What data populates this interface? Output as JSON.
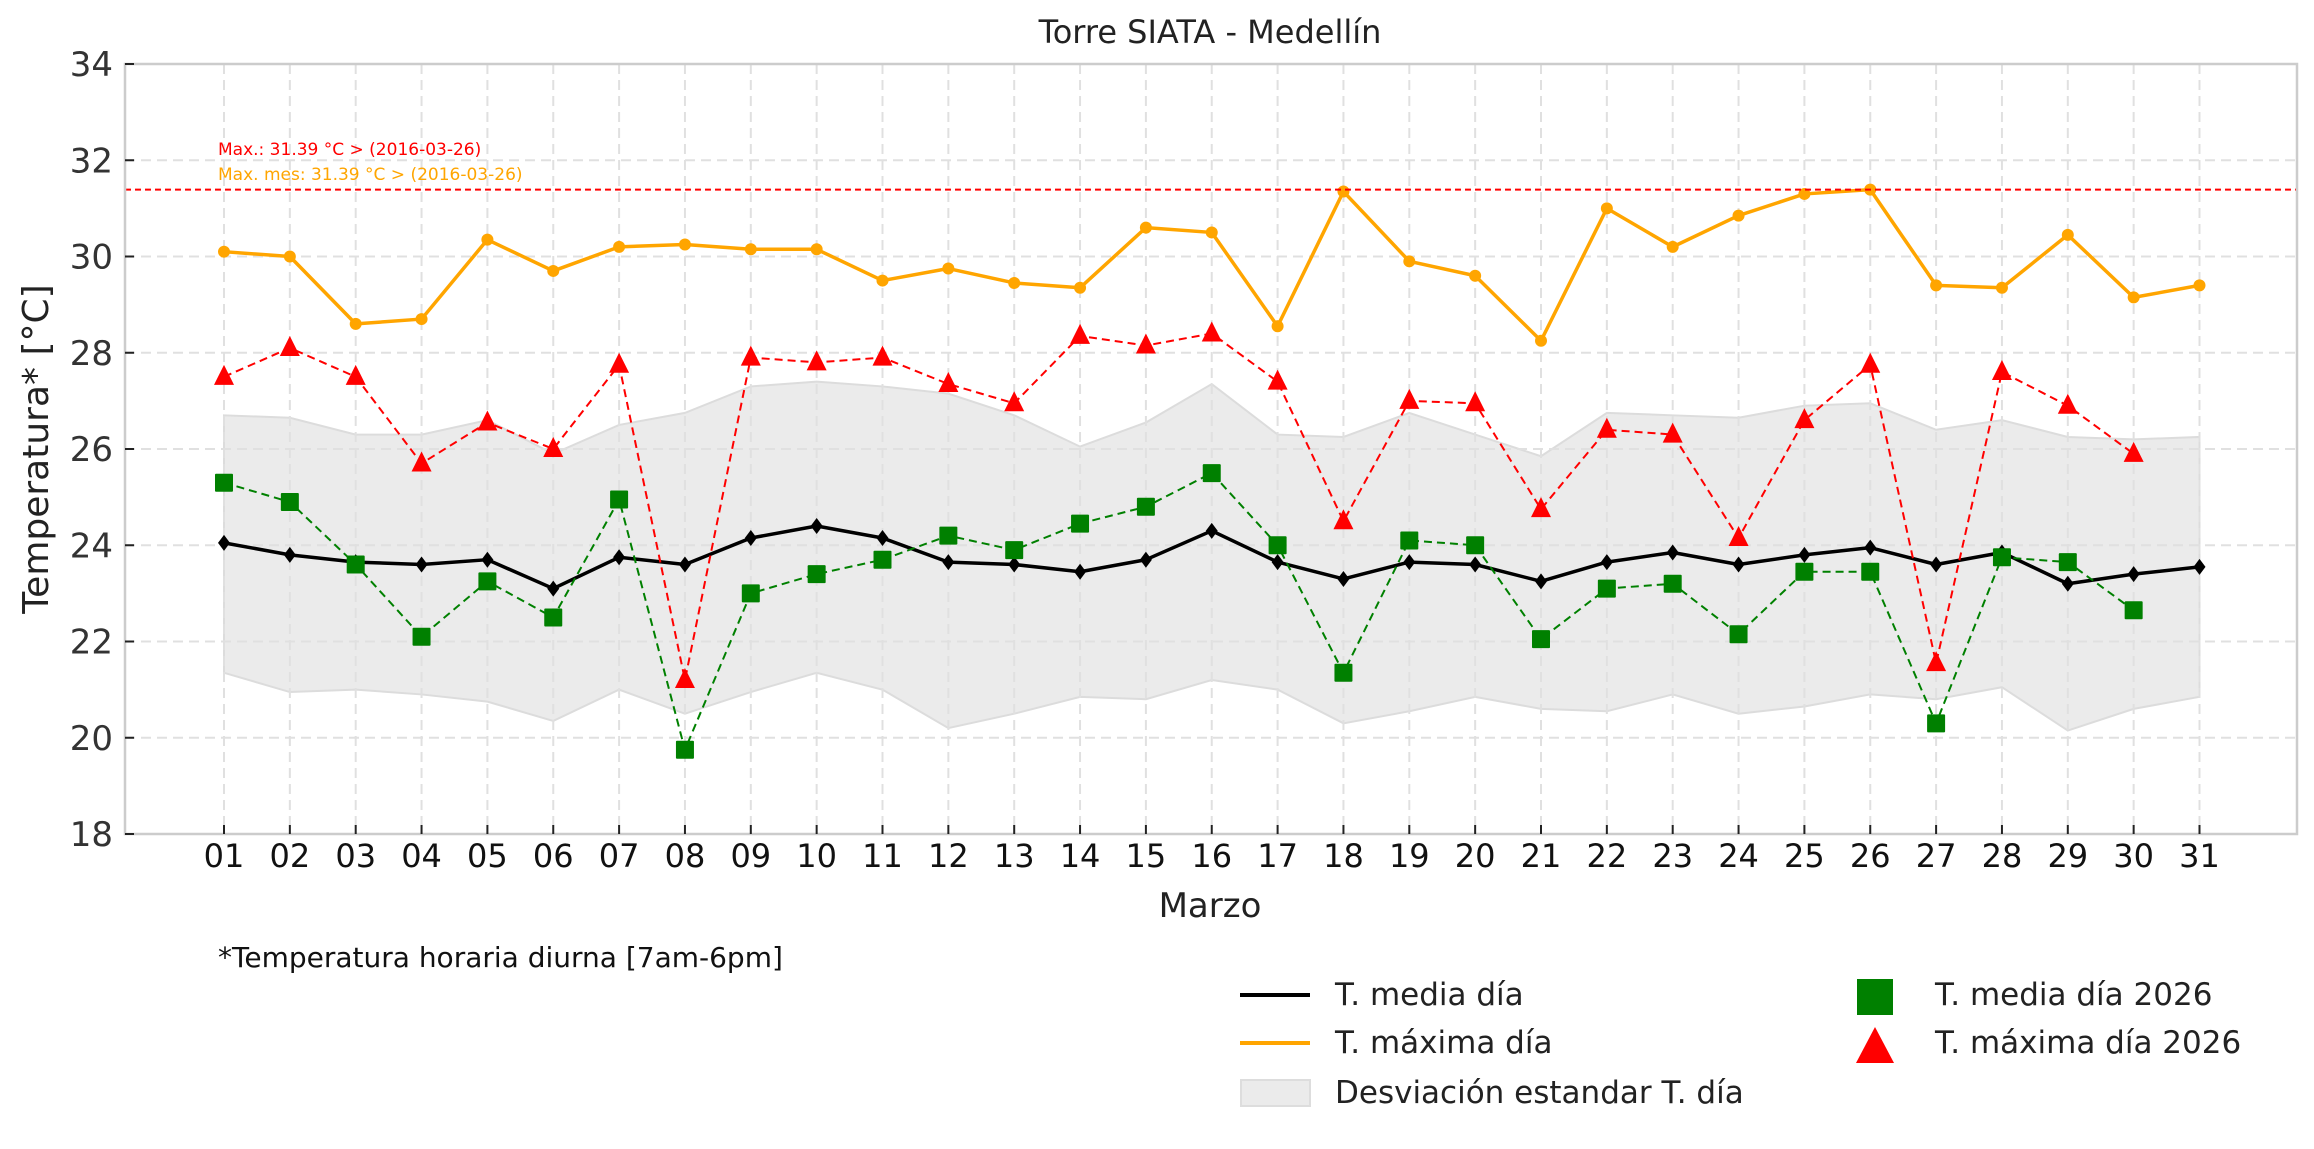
{
  "chart_data": {
    "type": "line",
    "title": "Torre SIATA - Medellín",
    "xlabel": "Marzo",
    "ylabel": "Temperatura* [°C]",
    "ylim": [
      18,
      34
    ],
    "yticks": [
      18,
      20,
      22,
      24,
      26,
      28,
      30,
      32,
      34
    ],
    "grid": true,
    "categories": [
      "01",
      "02",
      "03",
      "04",
      "05",
      "06",
      "07",
      "08",
      "09",
      "10",
      "11",
      "12",
      "13",
      "14",
      "15",
      "16",
      "17",
      "18",
      "19",
      "20",
      "21",
      "22",
      "23",
      "24",
      "25",
      "26",
      "27",
      "28",
      "29",
      "30",
      "31"
    ],
    "series": [
      {
        "name": "T. media día",
        "style": "solid-line",
        "marker": "diamond",
        "color": "#000000",
        "values": [
          24.05,
          23.8,
          23.65,
          23.6,
          23.7,
          23.1,
          23.75,
          23.6,
          24.15,
          24.4,
          24.15,
          23.65,
          23.6,
          23.45,
          23.7,
          24.3,
          23.65,
          23.3,
          23.65,
          23.6,
          23.25,
          23.65,
          23.85,
          23.6,
          23.8,
          23.95,
          23.6,
          23.85,
          23.2,
          23.4,
          23.55
        ]
      },
      {
        "name": "T. máxima día",
        "style": "solid-line",
        "marker": "circle",
        "color": "#FFA500",
        "values": [
          30.1,
          30.0,
          28.6,
          28.7,
          30.35,
          29.7,
          30.2,
          30.25,
          30.15,
          30.15,
          29.5,
          29.75,
          29.45,
          29.35,
          30.6,
          30.5,
          28.55,
          31.35,
          29.9,
          29.6,
          28.25,
          31.0,
          30.2,
          30.85,
          31.3,
          31.39,
          29.4,
          29.35,
          30.45,
          29.15,
          29.4
        ]
      },
      {
        "name": "T. media día 2026",
        "style": "dashed-line",
        "marker": "square",
        "color": "#008000",
        "values": [
          25.3,
          24.9,
          23.6,
          22.1,
          23.25,
          22.5,
          24.95,
          19.75,
          23.0,
          23.4,
          23.7,
          24.2,
          23.9,
          24.45,
          24.8,
          25.5,
          24.0,
          21.35,
          24.1,
          24.0,
          22.05,
          23.1,
          23.2,
          22.15,
          23.45,
          23.45,
          20.3,
          23.75,
          23.65,
          22.65,
          null
        ]
      },
      {
        "name": "T. máxima día 2026",
        "style": "dashed-line",
        "marker": "triangle",
        "color": "#FF0000",
        "values": [
          27.5,
          28.1,
          27.5,
          25.7,
          26.55,
          26.0,
          27.75,
          21.2,
          27.9,
          27.8,
          27.9,
          27.35,
          26.95,
          28.35,
          28.15,
          28.4,
          27.4,
          24.5,
          27.0,
          26.95,
          24.75,
          26.4,
          26.3,
          24.15,
          26.6,
          27.75,
          21.55,
          27.6,
          26.9,
          25.9,
          null
        ]
      }
    ],
    "band": {
      "name": "Desviación estandar T. día",
      "color": "#EBEBEB",
      "upper": [
        26.7,
        26.65,
        26.3,
        26.3,
        26.6,
        25.9,
        26.5,
        26.75,
        27.3,
        27.4,
        27.3,
        27.15,
        26.7,
        26.05,
        26.55,
        27.35,
        26.3,
        26.25,
        26.75,
        26.3,
        25.85,
        26.75,
        26.7,
        26.65,
        26.9,
        26.95,
        26.4,
        26.6,
        26.25,
        26.2,
        26.25
      ],
      "lower": [
        21.35,
        20.95,
        21.0,
        20.9,
        20.75,
        20.35,
        21.0,
        20.5,
        20.95,
        21.35,
        21.0,
        20.2,
        20.5,
        20.85,
        20.8,
        21.2,
        21.0,
        20.3,
        20.55,
        20.85,
        20.6,
        20.55,
        20.9,
        20.5,
        20.65,
        20.9,
        20.8,
        21.05,
        20.15,
        20.6,
        20.85
      ]
    },
    "reference_line": {
      "value": 31.39,
      "color": "#FF0000",
      "style": "dashed"
    },
    "annotations": [
      {
        "text": "Max.: 31.39 °C  >  (2016-03-26)",
        "color": "#FF0000"
      },
      {
        "text": "Max. mes: 31.39 °C  >  (2016-03-26)",
        "color": "#FFA500"
      }
    ],
    "footnote": "*Temperatura horaria diurna [7am-6pm]",
    "legend": {
      "placement": "bottom-right",
      "entries": [
        {
          "label": "T. media día",
          "kind": "line",
          "color": "#000000"
        },
        {
          "label": "T. máxima día",
          "kind": "line",
          "color": "#FFA500"
        },
        {
          "label": "Desviación estandar T. día",
          "kind": "patch",
          "color": "#EBEBEB"
        },
        {
          "label": "T. media día 2026",
          "kind": "square",
          "color": "#008000"
        },
        {
          "label": "T. máxima día 2026",
          "kind": "triangle",
          "color": "#FF0000"
        }
      ]
    }
  }
}
